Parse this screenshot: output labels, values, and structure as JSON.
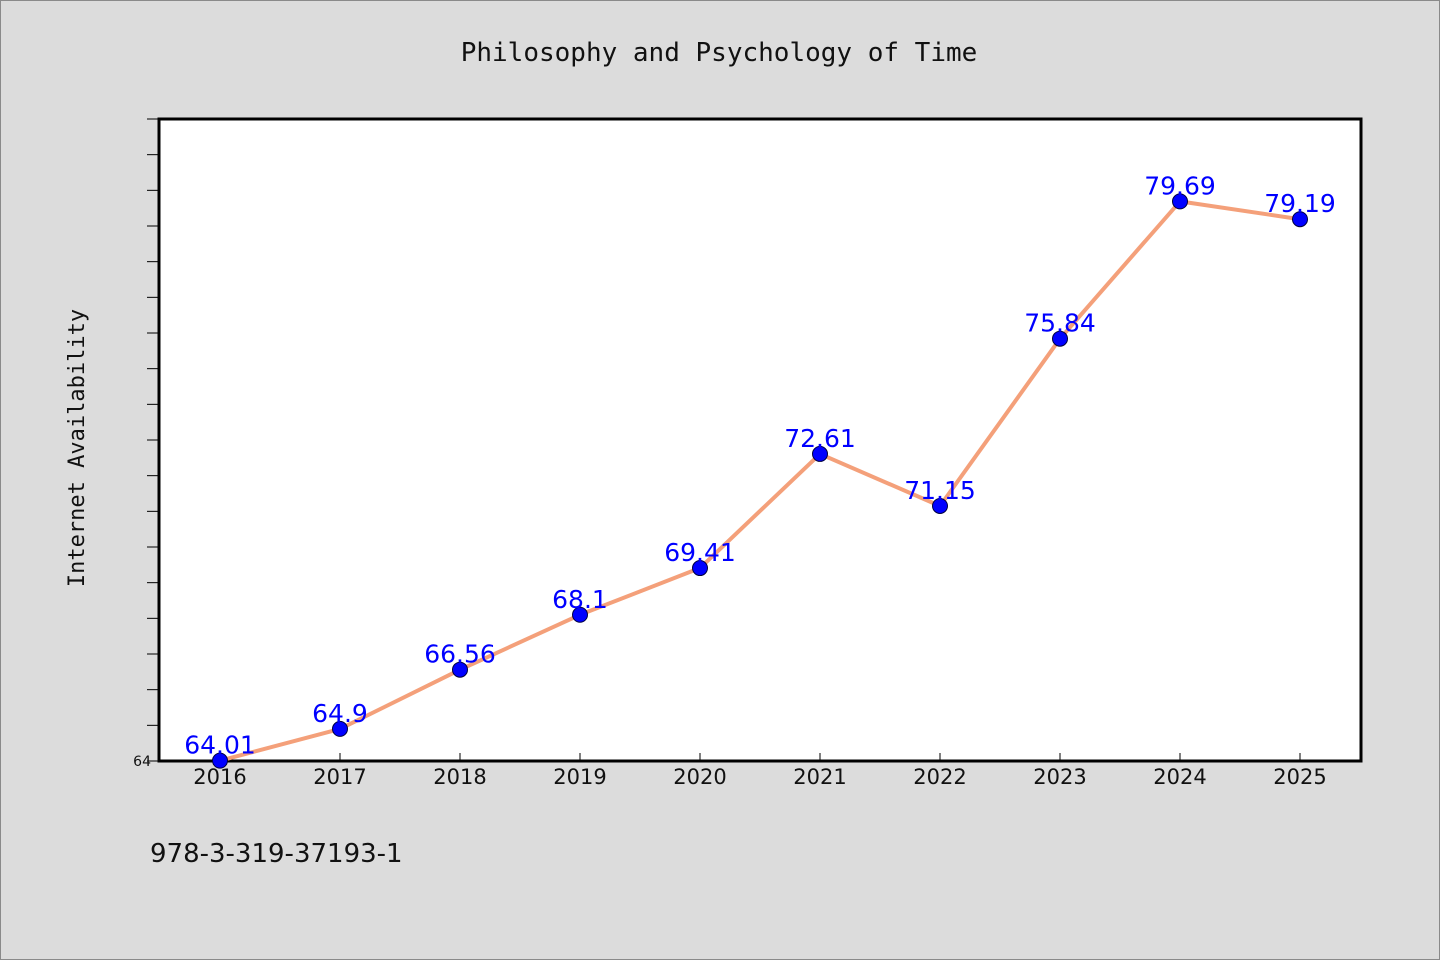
{
  "chart_data": {
    "type": "line",
    "title": "Philosophy and Psychology of Time",
    "xlabel": "",
    "ylabel": "Internet Availability",
    "categories": [
      "2016",
      "2017",
      "2018",
      "2019",
      "2020",
      "2021",
      "2022",
      "2023",
      "2024",
      "2025"
    ],
    "series": [
      {
        "values": [
          64.01,
          64.9,
          66.56,
          68.1,
          69.41,
          72.61,
          71.15,
          75.84,
          79.69,
          79.19
        ],
        "data_labels": [
          "64.01",
          "64.9",
          "66.56",
          "68.1",
          "69.41",
          "72.61",
          "71.15",
          "75.84",
          "79.69",
          "79.19"
        ],
        "line_color": "#f4a07a",
        "marker_color": "#0000ff"
      }
    ],
    "ylim": [
      64,
      82
    ],
    "yticks_labeled": [
      "64"
    ],
    "grid": false,
    "legend": "none"
  },
  "footer": {
    "isbn": "978-3-319-37193-1"
  }
}
